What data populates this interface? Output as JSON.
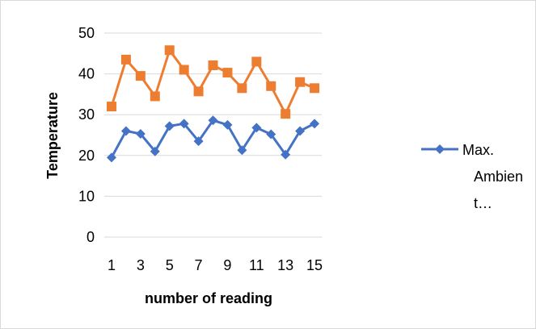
{
  "chart_data": {
    "type": "line",
    "title": "",
    "xlabel": "number of reading",
    "ylabel": "Temperature",
    "x": [
      1,
      2,
      3,
      4,
      5,
      6,
      7,
      8,
      9,
      10,
      11,
      12,
      13,
      14,
      15
    ],
    "x_tick_labels": [
      "1",
      "3",
      "5",
      "7",
      "9",
      "11",
      "13",
      "15"
    ],
    "y_tick_labels": [
      "0",
      "10",
      "20",
      "30",
      "40",
      "50"
    ],
    "ylim": [
      0,
      50
    ],
    "grid": "horizontal",
    "legend_position": "right",
    "series": [
      {
        "name": "Max. Ambient...",
        "legend_lines": [
          "Max.",
          "Ambien",
          "t…"
        ],
        "color": "#4472c4",
        "marker": "diamond",
        "values": [
          19.5,
          26,
          25.3,
          21,
          27.2,
          27.8,
          23.5,
          28.6,
          27.5,
          21.3,
          26.8,
          25.2,
          20.2,
          26,
          27.8
        ]
      },
      {
        "name": "",
        "color": "#ed7d31",
        "marker": "square",
        "values": [
          32,
          43.5,
          39.5,
          34.5,
          45.8,
          41,
          35.7,
          42.1,
          40.3,
          36.5,
          43,
          37,
          30.2,
          38,
          36.5
        ]
      }
    ]
  }
}
